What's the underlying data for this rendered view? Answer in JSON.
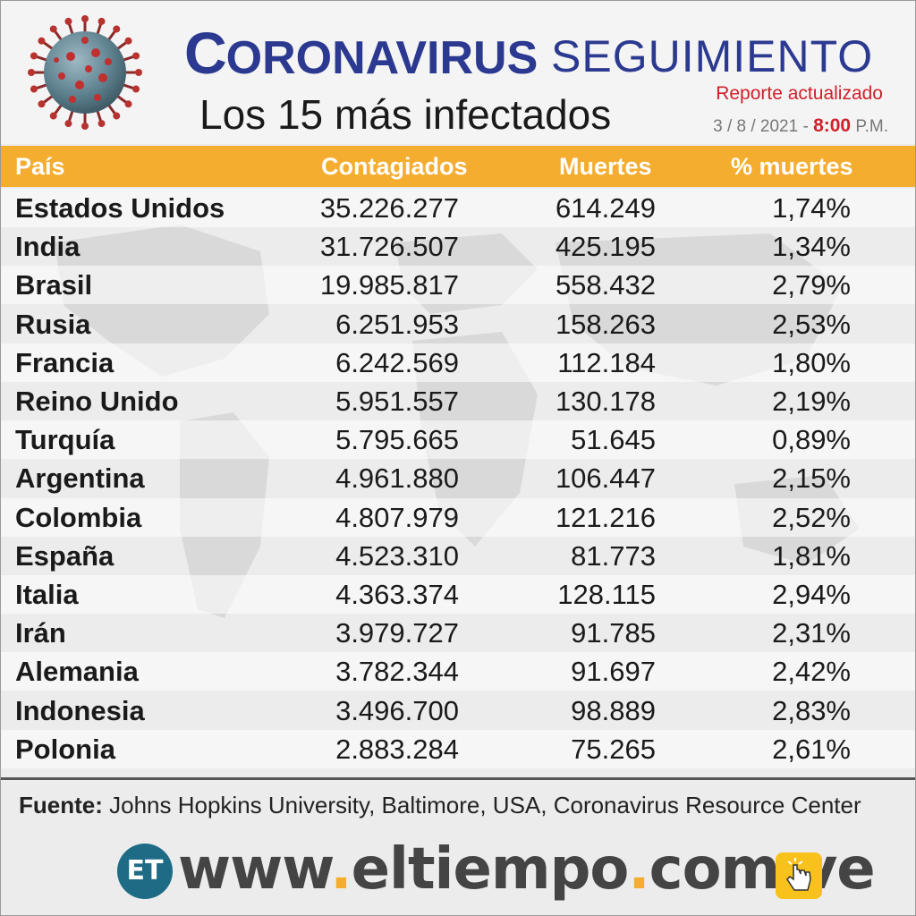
{
  "header": {
    "title_first_letter": "C",
    "title_rest": "ORONAVIRUS",
    "title_second": "SEGUIMIENTO",
    "subtitle": "Los 15 más infectados",
    "report_label": "Reporte actualizado",
    "date": "3 / 8 / 2021 -",
    "time": "8:00",
    "ampm": "P.M."
  },
  "table": {
    "columns": [
      "País",
      "Contagiados",
      "Muertes",
      "% muertes"
    ],
    "rows": [
      {
        "country": "Estados Unidos",
        "cases": "35.226.277",
        "deaths": "614.249",
        "pct": "1,74%"
      },
      {
        "country": "India",
        "cases": "31.726.507",
        "deaths": "425.195",
        "pct": "1,34%"
      },
      {
        "country": "Brasil",
        "cases": "19.985.817",
        "deaths": "558.432",
        "pct": "2,79%"
      },
      {
        "country": "Rusia",
        "cases": "6.251.953",
        "deaths": "158.263",
        "pct": "2,53%"
      },
      {
        "country": "Francia",
        "cases": "6.242.569",
        "deaths": "112.184",
        "pct": "1,80%"
      },
      {
        "country": "Reino Unido",
        "cases": "5.951.557",
        "deaths": "130.178",
        "pct": "2,19%"
      },
      {
        "country": "Turquía",
        "cases": "5.795.665",
        "deaths": "51.645",
        "pct": "0,89%"
      },
      {
        "country": "Argentina",
        "cases": "4.961.880",
        "deaths": "106.447",
        "pct": "2,15%"
      },
      {
        "country": "Colombia",
        "cases": "4.807.979",
        "deaths": "121.216",
        "pct": "2,52%"
      },
      {
        "country": "España",
        "cases": "4.523.310",
        "deaths": "81.773",
        "pct": "1,81%"
      },
      {
        "country": "Italia",
        "cases": "4.363.374",
        "deaths": "128.115",
        "pct": "2,94%"
      },
      {
        "country": "Irán",
        "cases": "3.979.727",
        "deaths": "91.785",
        "pct": "2,31%"
      },
      {
        "country": "Alemania",
        "cases": "3.782.344",
        "deaths": "91.697",
        "pct": "2,42%"
      },
      {
        "country": "Indonesia",
        "cases": "3.496.700",
        "deaths": "98.889",
        "pct": "2,83%"
      },
      {
        "country": "Polonia",
        "cases": "2.883.284",
        "deaths": "75.265",
        "pct": "2,61%"
      }
    ]
  },
  "source": {
    "label": "Fuente:",
    "text": "Johns Hopkins University, Baltimore, USA, Coronavirus Resource Center"
  },
  "footer": {
    "logo_text": "ET",
    "url_parts": [
      "www",
      ".",
      "eltiempo",
      ".",
      "com",
      ".",
      "ve"
    ]
  },
  "colors": {
    "title_blue": "#2b3990",
    "header_orange": "#f5ad30",
    "accent_red": "#d0202b",
    "logo_teal": "#1e6b85",
    "hand_yellow": "#f8c21d"
  },
  "icons": [
    "coronavirus-icon",
    "world-map-icon",
    "hand-pointer-icon"
  ]
}
